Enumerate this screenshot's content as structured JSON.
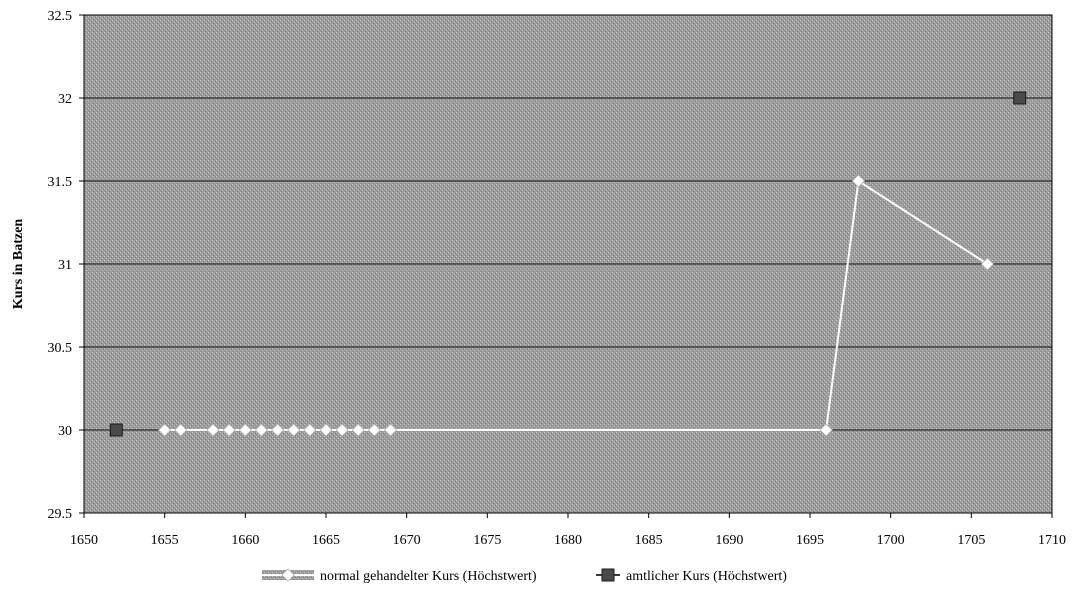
{
  "chart_data": {
    "type": "line",
    "title": "",
    "xlabel": "",
    "ylabel": "Kurs in Batzen",
    "xlim": [
      1650,
      1710
    ],
    "ylim": [
      29.5,
      32.5
    ],
    "x_ticks": [
      1650,
      1655,
      1660,
      1665,
      1670,
      1675,
      1680,
      1685,
      1690,
      1695,
      1700,
      1705,
      1710
    ],
    "y_ticks": [
      29.5,
      30,
      30.5,
      31,
      31.5,
      32,
      32.5
    ],
    "grid": true,
    "legend_position": "bottom",
    "series": [
      {
        "name": "normal gehandelter Kurs (Höchstwert)",
        "color": "#ffffff",
        "marker": "diamond",
        "points": [
          [
            1655,
            30
          ],
          [
            1656,
            30
          ],
          [
            1658,
            30
          ],
          [
            1659,
            30
          ],
          [
            1660,
            30
          ],
          [
            1661,
            30
          ],
          [
            1662,
            30
          ],
          [
            1663,
            30
          ],
          [
            1664,
            30
          ],
          [
            1665,
            30
          ],
          [
            1666,
            30
          ],
          [
            1667,
            30
          ],
          [
            1668,
            30
          ],
          [
            1669,
            30
          ],
          [
            1696,
            30
          ],
          [
            1698,
            31.5
          ],
          [
            1706,
            31
          ]
        ]
      },
      {
        "name": "amtlicher Kurs (Höchstwert)",
        "color": "#3a3a3a",
        "marker": "square",
        "points": [
          [
            1652,
            30
          ],
          [
            1708,
            32
          ]
        ]
      }
    ]
  }
}
